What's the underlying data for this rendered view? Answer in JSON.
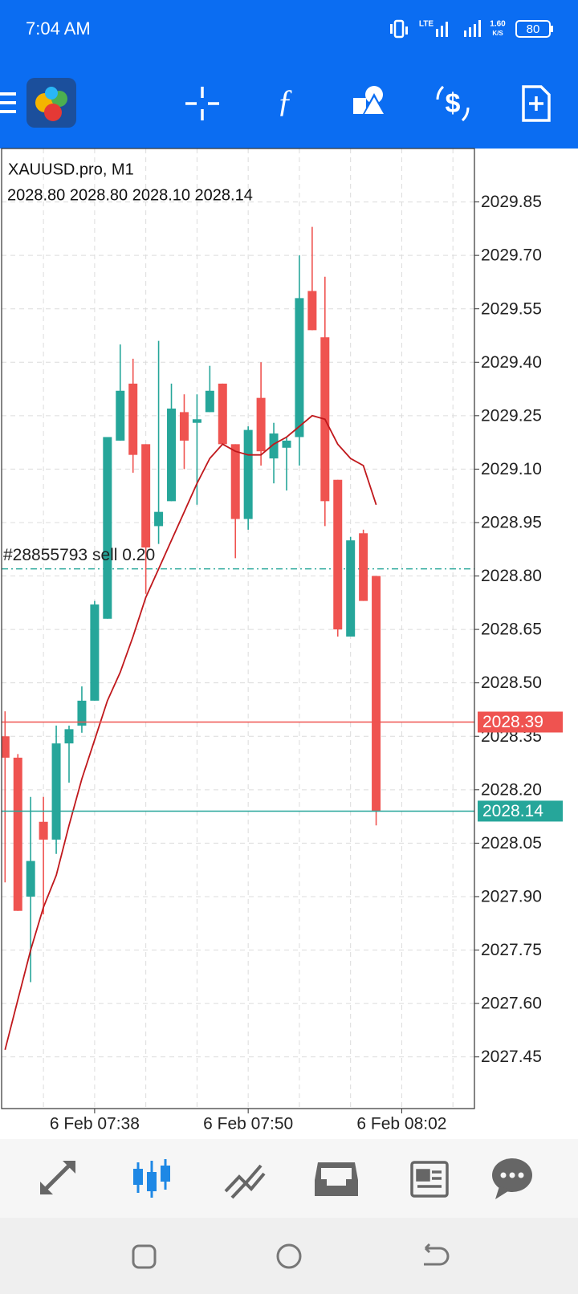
{
  "status_bar": {
    "time": "7:04 AM",
    "network": "LTE",
    "speed": "1.60",
    "speed_unit": "K/S",
    "battery": "80"
  },
  "chart_data": {
    "type": "candlestick",
    "title": "XAUUSD.pro, M1",
    "ohlc_label": "2028.80 2028.80 2028.10 2028.14",
    "x": [
      "6 Feb 07:31",
      "6 Feb 07:32",
      "6 Feb 07:33",
      "6 Feb 07:34",
      "6 Feb 07:35",
      "6 Feb 07:36",
      "6 Feb 07:37",
      "6 Feb 07:38",
      "6 Feb 07:39",
      "6 Feb 07:40",
      "6 Feb 07:41",
      "6 Feb 07:42",
      "6 Feb 07:43",
      "6 Feb 07:44",
      "6 Feb 07:45",
      "6 Feb 07:46",
      "6 Feb 07:47",
      "6 Feb 07:48",
      "6 Feb 07:49",
      "6 Feb 07:50",
      "6 Feb 07:51",
      "6 Feb 07:52",
      "6 Feb 07:53",
      "6 Feb 07:54",
      "6 Feb 07:55",
      "6 Feb 07:56",
      "6 Feb 07:57",
      "6 Feb 07:58",
      "6 Feb 07:59",
      "6 Feb 08:00"
    ],
    "open": [
      2028.35,
      2028.29,
      2027.9,
      2028.11,
      2028.06,
      2028.33,
      2028.38,
      2028.45,
      2028.68,
      2029.18,
      2029.34,
      2029.17,
      2028.94,
      2029.01,
      2029.26,
      2029.23,
      2029.26,
      2029.34,
      2029.17,
      2028.96,
      2029.3,
      2029.13,
      2029.16,
      2029.19,
      2029.6,
      2029.47,
      2029.07,
      2028.63,
      2028.92,
      2028.8
    ],
    "high": [
      2028.42,
      2028.3,
      2028.18,
      2028.18,
      2028.38,
      2028.38,
      2028.49,
      2028.73,
      2029.19,
      2029.45,
      2029.41,
      2029.17,
      2029.46,
      2029.34,
      2029.31,
      2029.31,
      2029.39,
      2029.34,
      2029.17,
      2029.22,
      2029.4,
      2029.23,
      2029.19,
      2029.7,
      2029.78,
      2029.64,
      2029.07,
      2028.91,
      2028.93,
      2028.8
    ],
    "low": [
      2027.94,
      2027.86,
      2027.66,
      2027.85,
      2028.02,
      2028.22,
      2028.36,
      2028.45,
      2028.68,
      2029.18,
      2029.09,
      2028.75,
      2028.89,
      2029.01,
      2029.1,
      2029.0,
      2029.26,
      2029.17,
      2028.85,
      2028.93,
      2029.11,
      2029.06,
      2029.04,
      2029.11,
      2029.49,
      2028.94,
      2028.63,
      2028.63,
      2028.73,
      2028.1
    ],
    "close": [
      2028.29,
      2027.86,
      2028.0,
      2028.06,
      2028.33,
      2028.37,
      2028.45,
      2028.72,
      2029.19,
      2029.32,
      2029.14,
      2028.88,
      2028.98,
      2029.27,
      2029.18,
      2029.24,
      2029.32,
      2029.17,
      2028.96,
      2029.21,
      2029.15,
      2029.2,
      2029.18,
      2029.58,
      2029.49,
      2029.01,
      2028.65,
      2028.9,
      2028.73,
      2028.14
    ],
    "up_color": "#26a69a",
    "down_color": "#ef5350",
    "ma": {
      "color": "#c0181c",
      "values": [
        2027.47,
        2027.61,
        2027.75,
        2027.87,
        2027.96,
        2028.1,
        2028.23,
        2028.34,
        2028.45,
        2028.53,
        2028.63,
        2028.74,
        2028.82,
        2028.9,
        2028.98,
        2029.06,
        2029.13,
        2029.17,
        2029.15,
        2029.14,
        2029.14,
        2029.17,
        2029.19,
        2029.22,
        2029.25,
        2029.24,
        2029.17,
        2029.13,
        2029.11,
        2029.0
      ]
    },
    "ylim": [
      2027.305,
      2030.0
    ],
    "yticks": [
      2029.85,
      {
        "value": 2029.7,
        "label": "2029.70"
      },
      2029.55,
      {
        "value": 2029.4,
        "label": "2029.40"
      },
      2029.25,
      {
        "value": 2029.1,
        "label": "2029.10"
      },
      2028.95,
      {
        "value": 2028.8,
        "label": "2028.80"
      },
      2028.65,
      {
        "value": 2028.5,
        "label": "2028.50"
      },
      2028.35,
      {
        "value": 2028.2,
        "label": "2028.20"
      },
      2028.05,
      {
        "value": 2027.9,
        "label": "2027.90"
      },
      2027.75,
      {
        "value": 2027.6,
        "label": "2027.60"
      },
      2027.45
    ],
    "xticks": [
      "6 Feb 07:38",
      "6 Feb 07:50",
      "6 Feb 08:02"
    ],
    "grid": true,
    "order_line": {
      "label": "#28855793 sell 0.20",
      "value": 2028.82,
      "color": "#26a69a"
    },
    "bid_line": {
      "value": 2028.39,
      "color": "#ef5350"
    },
    "last_line": {
      "value": 2028.14,
      "color": "#26a69a"
    }
  }
}
